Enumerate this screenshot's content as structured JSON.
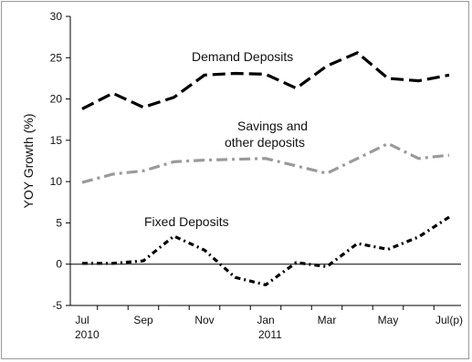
{
  "chart_data": {
    "type": "line",
    "ylabel": "YOY Growth (%)",
    "ylim": [
      -5,
      30
    ],
    "yticks": [
      -5,
      0,
      5,
      10,
      15,
      20,
      25,
      30
    ],
    "x_categories": [
      "Jul 2010",
      "Aug 2010",
      "Sep 2010",
      "Oct 2010",
      "Nov 2010",
      "Dec 2010",
      "Jan 2011",
      "Feb 2011",
      "Mar 2011",
      "Apr 2011",
      "May 2011",
      "Jun 2011",
      "Jul(p) 2011"
    ],
    "xtick_labels": [
      "Jul",
      "",
      "Sep",
      "",
      "Nov",
      "",
      "Jan",
      "",
      "Mar",
      "",
      "May",
      "",
      "Jul(p)"
    ],
    "year_labels": [
      {
        "index": 0,
        "text": "2010"
      },
      {
        "index": 6,
        "text": "2011"
      }
    ],
    "series": [
      {
        "name": "Demand Deposits",
        "label": "Demand Deposits",
        "color": "#000000",
        "style": "dashed-long",
        "values": [
          18.8,
          20.7,
          19.0,
          20.2,
          22.9,
          23.1,
          23.0,
          21.3,
          24.0,
          25.6,
          22.5,
          22.2,
          22.9
        ]
      },
      {
        "name": "Savings and other deposits",
        "label_lines": [
          "Savings and",
          "other deposits"
        ],
        "color": "#9a9a9a",
        "style": "dash-dot",
        "values": [
          9.9,
          10.9,
          11.3,
          12.4,
          12.6,
          12.7,
          12.8,
          11.9,
          11.0,
          12.8,
          14.6,
          12.8,
          13.2
        ]
      },
      {
        "name": "Fixed Deposits",
        "label": "Fixed Deposits",
        "color": "#000000",
        "style": "dash-dot-short",
        "values": [
          0.1,
          0.1,
          0.4,
          3.4,
          1.7,
          -1.6,
          -2.5,
          0.2,
          -0.3,
          2.5,
          1.8,
          3.3,
          5.7
        ]
      }
    ],
    "grid": false,
    "legend": "inline annotations"
  }
}
